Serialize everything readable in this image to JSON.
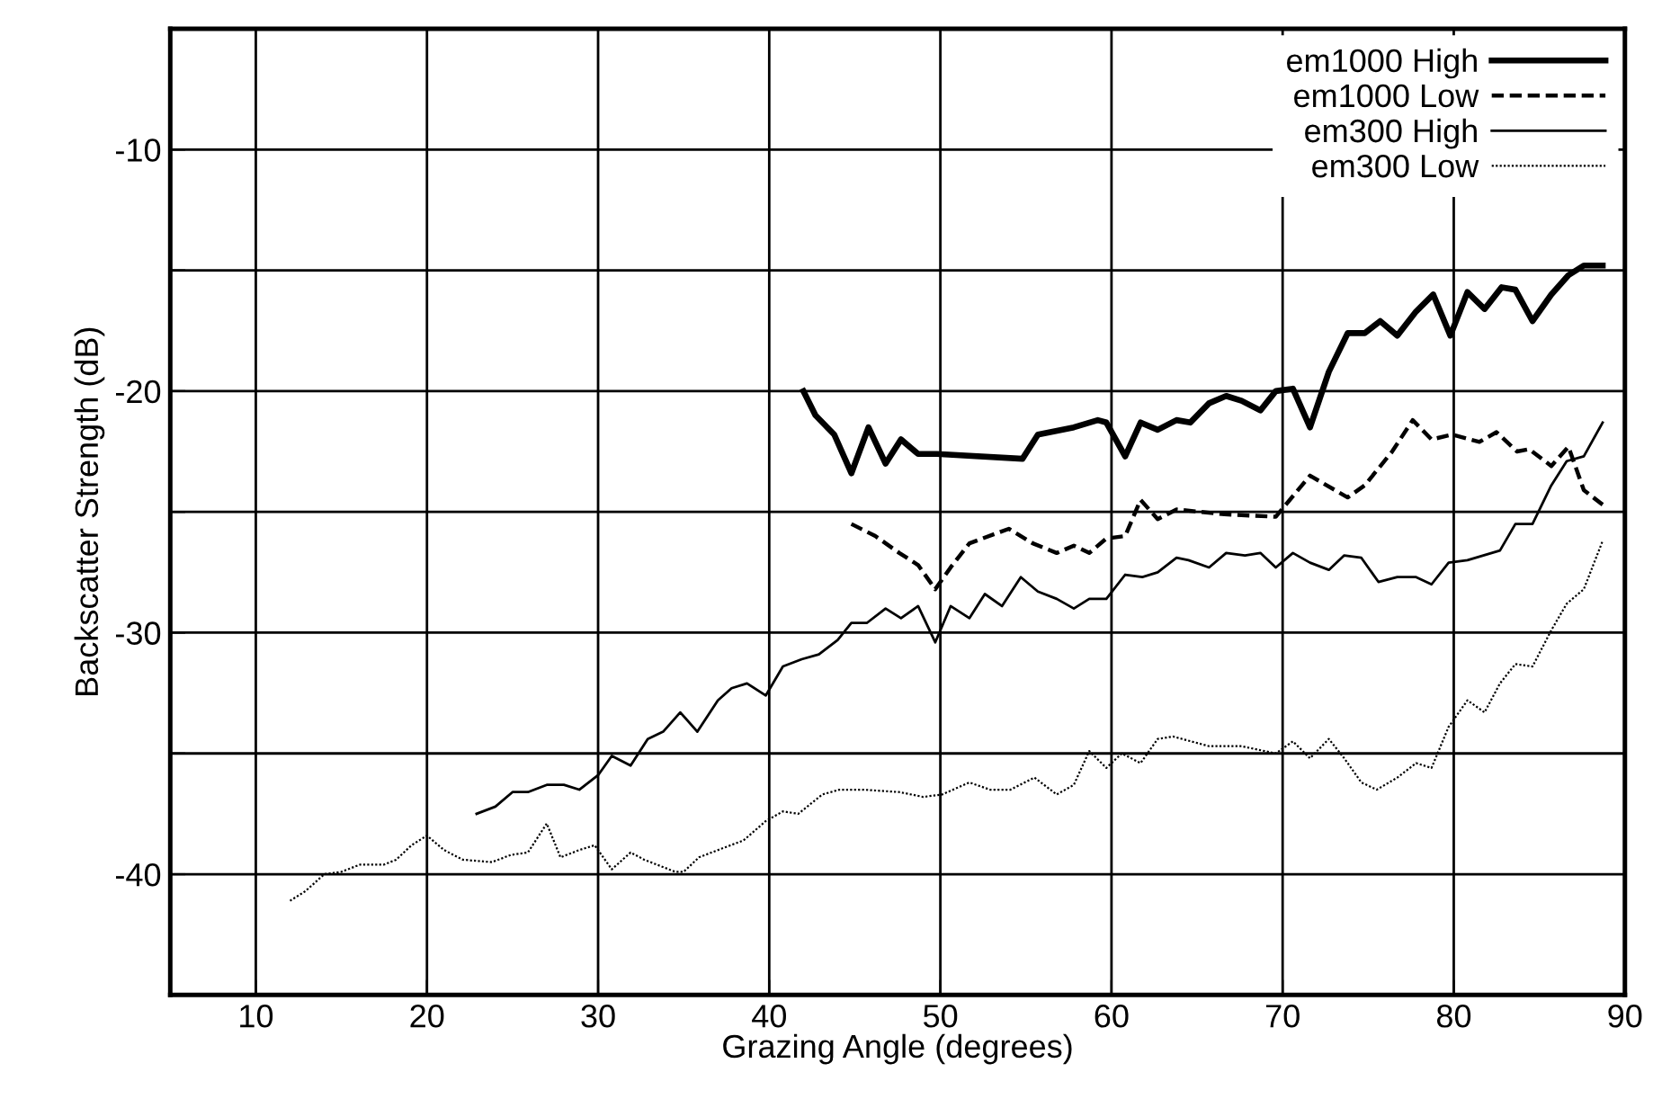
{
  "chart_data": {
    "type": "line",
    "xlabel": "Grazing Angle (degrees)",
    "ylabel": "Backscatter Strength (dB)",
    "xlim": [
      5,
      90
    ],
    "xticks": [
      10,
      20,
      30,
      40,
      50,
      60,
      70,
      80,
      90
    ],
    "ylim": [
      -45,
      -5
    ],
    "yticks": [
      {
        "value": -45,
        "label": null
      },
      -40,
      {
        "value": -35,
        "label": null
      },
      -30,
      {
        "value": -25,
        "label": null
      },
      -20,
      {
        "value": -15,
        "label": null
      },
      -10,
      {
        "value": -5,
        "label": null
      }
    ],
    "grid": true,
    "legend": "top right",
    "series": [
      {
        "name": "em1000 High",
        "color": "#000000",
        "line_style": "solid",
        "x": [
          42.0,
          42.7,
          43.8,
          44.8,
          45.8,
          46.8,
          47.7,
          48.7,
          49.8,
          54.8,
          55.7,
          57.8,
          59.2,
          59.7,
          60.8,
          61.7,
          62.7,
          63.8,
          64.6,
          65.7,
          66.7,
          67.6,
          68.7,
          69.6,
          70.6,
          71.6,
          72.7,
          73.8,
          74.8,
          75.7,
          76.7,
          77.8,
          78.8,
          79.8,
          80.8,
          81.8,
          82.8,
          83.6,
          84.6,
          85.7,
          86.7,
          87.6,
          88.7
        ],
        "values": [
          -20.0,
          -21.0,
          -21.8,
          -23.4,
          -21.5,
          -23.0,
          -22.0,
          -22.6,
          -22.6,
          -22.8,
          -21.8,
          -21.5,
          -21.2,
          -21.3,
          -22.7,
          -21.3,
          -21.6,
          -21.2,
          -21.3,
          -20.5,
          -20.2,
          -20.4,
          -20.8,
          -20.0,
          -19.9,
          -21.5,
          -19.2,
          -17.6,
          -17.6,
          -17.1,
          -17.7,
          -16.7,
          -16.0,
          -17.7,
          -15.9,
          -16.6,
          -15.7,
          -15.8,
          -17.1,
          -16.0,
          -15.2,
          -14.8,
          -14.8
        ]
      },
      {
        "name": "em1000 Low",
        "color": "#000000",
        "line_style": "dashed",
        "x": [
          44.8,
          46.2,
          47.6,
          48.7,
          49.7,
          50.6,
          51.7,
          54.0,
          55.4,
          56.8,
          57.8,
          58.7,
          59.7,
          60.8,
          61.7,
          62.7,
          63.8,
          66.6,
          69.6,
          71.6,
          73.8,
          74.8,
          76.4,
          77.6,
          78.7,
          79.9,
          81.5,
          82.5,
          83.7,
          84.4,
          85.7,
          86.7,
          87.6,
          88.7
        ],
        "values": [
          -25.5,
          -26.0,
          -26.7,
          -27.2,
          -28.2,
          -27.3,
          -26.3,
          -25.7,
          -26.3,
          -26.7,
          -26.4,
          -26.7,
          -26.1,
          -26.0,
          -24.5,
          -25.3,
          -24.9,
          -25.1,
          -25.2,
          -23.5,
          -24.4,
          -23.9,
          -22.5,
          -21.2,
          -22.0,
          -21.8,
          -22.1,
          -21.7,
          -22.5,
          -22.4,
          -23.1,
          -22.3,
          -24.1,
          -24.7
        ]
      },
      {
        "name": "em300 High",
        "color": "#000000",
        "line_style": "solid",
        "x": [
          22.9,
          24.0,
          25.0,
          25.9,
          27.0,
          28.0,
          28.9,
          30.0,
          30.8,
          31.9,
          32.9,
          33.8,
          34.8,
          35.8,
          37.0,
          37.8,
          38.7,
          39.8,
          40.8,
          41.9,
          42.9,
          44.0,
          44.8,
          45.7,
          46.8,
          47.7,
          48.7,
          49.7,
          50.6,
          51.7,
          52.6,
          53.6,
          54.7,
          55.7,
          56.8,
          57.8,
          58.7,
          59.7,
          60.8,
          61.8,
          62.7,
          63.8,
          64.5,
          65.7,
          66.7,
          67.8,
          68.7,
          69.6,
          70.6,
          71.6,
          72.7,
          73.6,
          74.6,
          75.6,
          76.7,
          77.8,
          78.7,
          79.7,
          80.8,
          82.7,
          83.6,
          84.6,
          85.7,
          86.6,
          87.6,
          88.7
        ],
        "values": [
          -37.5,
          -37.2,
          -36.6,
          -36.6,
          -36.3,
          -36.3,
          -36.5,
          -35.9,
          -35.1,
          -35.5,
          -34.4,
          -34.1,
          -33.3,
          -34.1,
          -32.8,
          -32.3,
          -32.1,
          -32.6,
          -31.4,
          -31.1,
          -30.9,
          -30.3,
          -29.6,
          -29.6,
          -29.0,
          -29.4,
          -28.9,
          -30.4,
          -28.9,
          -29.4,
          -28.4,
          -28.9,
          -27.7,
          -28.3,
          -28.6,
          -29.0,
          -28.6,
          -28.6,
          -27.6,
          -27.7,
          -27.5,
          -26.9,
          -27.0,
          -27.3,
          -26.7,
          -26.8,
          -26.7,
          -27.3,
          -26.7,
          -27.1,
          -27.4,
          -26.8,
          -26.9,
          -27.9,
          -27.7,
          -27.7,
          -28.0,
          -27.1,
          -27.0,
          -26.6,
          -25.5,
          -25.5,
          -23.9,
          -22.9,
          -22.7,
          -21.3
        ]
      },
      {
        "name": "em300 Low",
        "color": "#000000",
        "line_style": "dotted",
        "x": [
          12.0,
          12.9,
          14.0,
          15.0,
          16.1,
          17.5,
          18.2,
          19.1,
          20.0,
          21.0,
          22.1,
          23.8,
          24.9,
          25.9,
          27.0,
          27.8,
          28.9,
          29.8,
          30.8,
          31.9,
          32.7,
          34.5,
          35.0,
          35.9,
          37.0,
          38.5,
          39.8,
          40.8,
          41.7,
          43.1,
          44.1,
          45.5,
          47.6,
          49.0,
          50.1,
          51.7,
          52.9,
          54.1,
          55.5,
          56.8,
          57.8,
          58.7,
          59.7,
          60.6,
          61.7,
          62.7,
          63.6,
          65.7,
          67.6,
          69.6,
          70.6,
          71.6,
          72.7,
          73.6,
          74.6,
          75.5,
          76.7,
          77.8,
          78.7,
          79.7,
          80.8,
          81.8,
          82.7,
          83.6,
          84.6,
          85.7,
          86.6,
          87.6,
          88.7
        ],
        "values": [
          -41.1,
          -40.7,
          -40.0,
          -39.9,
          -39.6,
          -39.6,
          -39.4,
          -38.8,
          -38.4,
          -39.0,
          -39.4,
          -39.5,
          -39.2,
          -39.1,
          -37.9,
          -39.3,
          -39.0,
          -38.8,
          -39.8,
          -39.1,
          -39.4,
          -39.9,
          -39.9,
          -39.3,
          -39.0,
          -38.6,
          -37.8,
          -37.4,
          -37.5,
          -36.7,
          -36.5,
          -36.5,
          -36.6,
          -36.8,
          -36.7,
          -36.2,
          -36.5,
          -36.5,
          -36.0,
          -36.7,
          -36.3,
          -34.9,
          -35.6,
          -35.0,
          -35.4,
          -34.4,
          -34.3,
          -34.7,
          -34.7,
          -35.0,
          -34.5,
          -35.2,
          -34.4,
          -35.2,
          -36.2,
          -36.5,
          -36.0,
          -35.4,
          -35.6,
          -33.9,
          -32.8,
          -33.3,
          -32.1,
          -31.3,
          -31.4,
          -29.9,
          -28.8,
          -28.2,
          -26.2
        ]
      }
    ]
  }
}
